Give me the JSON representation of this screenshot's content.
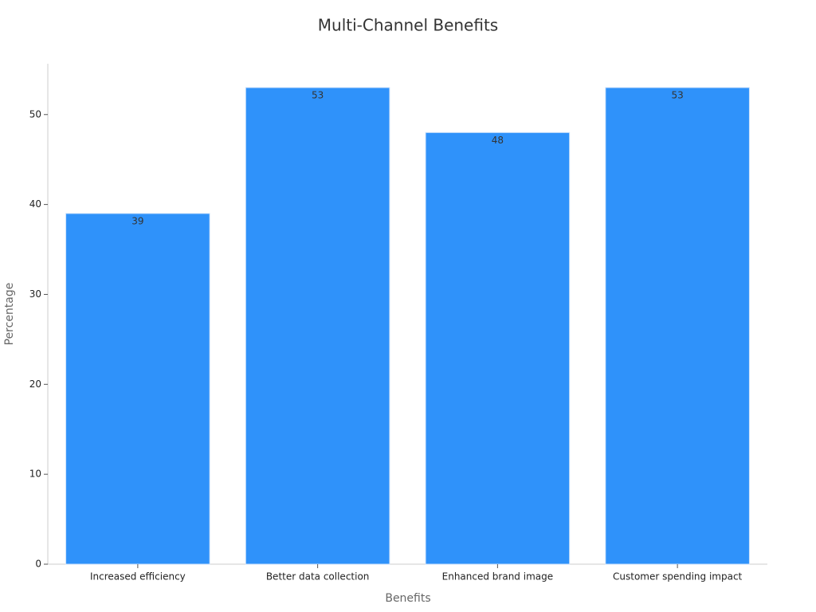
{
  "chart_data": {
    "type": "bar",
    "title": "Multi-Channel Benefits",
    "x_label": "Benefits",
    "y_label": "Percentage",
    "categories": [
      "Increased efficiency",
      "Better data collection",
      "Enhanced brand image",
      "Customer spending impact"
    ],
    "values": [
      39,
      53,
      48,
      53
    ],
    "color": "#2f92fa",
    "ylim": [
      0,
      55.65
    ],
    "yticks": [
      0,
      10,
      20,
      30,
      40,
      50
    ],
    "grid": false
  }
}
